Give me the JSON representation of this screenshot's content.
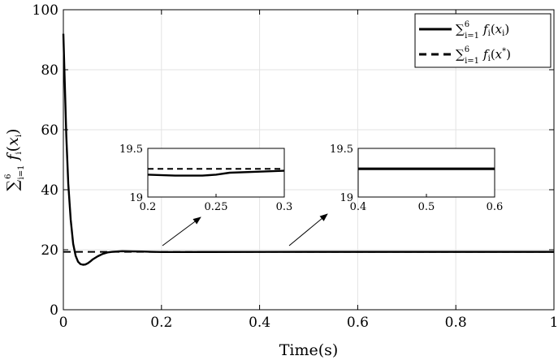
{
  "chart_data": {
    "type": "line",
    "xlabel": "Time(s)",
    "ylabel": "∑_{i=1}^{6} f_i(x_i)",
    "xlim": [
      0,
      1
    ],
    "ylim": [
      0,
      100
    ],
    "xticks": [
      0,
      0.2,
      0.4,
      0.6,
      0.8,
      1
    ],
    "xtick_labels": [
      "0",
      "0.2",
      "0.4",
      "0.6",
      "0.8",
      "1"
    ],
    "yticks": [
      0,
      20,
      40,
      60,
      80,
      100
    ],
    "ytick_labels": [
      "0",
      "20",
      "40",
      "60",
      "80",
      "100"
    ],
    "grid": true,
    "legend_position": "top-right",
    "series": [
      {
        "name": "∑_{i=1}^{6} f_i(x_i)",
        "style": "solid",
        "x": [
          0,
          0.003,
          0.006,
          0.01,
          0.015,
          0.02,
          0.025,
          0.03,
          0.035,
          0.04,
          0.045,
          0.05,
          0.055,
          0.06,
          0.07,
          0.08,
          0.09,
          0.1,
          0.12,
          0.14,
          0.16,
          0.18,
          0.2,
          0.25,
          0.3,
          0.4,
          0.5,
          0.6,
          0.8,
          1.0
        ],
        "y": [
          92,
          75,
          58,
          42,
          30,
          22,
          18,
          16,
          15.2,
          15,
          15.1,
          15.5,
          16.1,
          16.8,
          17.8,
          18.6,
          19.1,
          19.3,
          19.5,
          19.45,
          19.4,
          19.3,
          19.25,
          19.24,
          19.26,
          19.28,
          19.29,
          19.29,
          19.29,
          19.29
        ]
      },
      {
        "name": "∑_{i=1}^{6} f_i(x*)",
        "style": "dashed",
        "x": [
          0,
          1
        ],
        "y": [
          19.29,
          19.29
        ]
      }
    ],
    "legend": {
      "entries": [
        {
          "sum": "∑",
          "sub": "i=1",
          "sup": "6",
          "expr": "f",
          "arg_open": "(",
          "arg": "x",
          "arg_sub": "i",
          "arg_close": ")"
        },
        {
          "sum": "∑",
          "sub": "i=1",
          "sup": "6",
          "expr": "f",
          "arg_open": "(",
          "arg": "x",
          "arg_sub": "*",
          "arg_close": ")"
        }
      ]
    },
    "insets": [
      {
        "xlim": [
          0.2,
          0.3
        ],
        "ylim": [
          19,
          19.5
        ],
        "xtick_labels": [
          "0.2",
          "0.25",
          "0.3"
        ],
        "ytick_labels": [
          "19",
          "19.5"
        ],
        "x": [
          0.2,
          0.22,
          0.24,
          0.25,
          0.26,
          0.28,
          0.3
        ],
        "y": [
          19.23,
          19.22,
          19.22,
          19.23,
          19.25,
          19.26,
          19.27
        ],
        "ref": 19.29
      },
      {
        "xlim": [
          0.4,
          0.6
        ],
        "ylim": [
          19,
          19.5
        ],
        "xtick_labels": [
          "0.4",
          "0.5",
          "0.6"
        ],
        "ytick_labels": [
          "19",
          "19.5"
        ],
        "x": [
          0.4,
          0.5,
          0.6
        ],
        "y": [
          19.29,
          19.29,
          19.29
        ],
        "ref": 19.29
      }
    ]
  }
}
